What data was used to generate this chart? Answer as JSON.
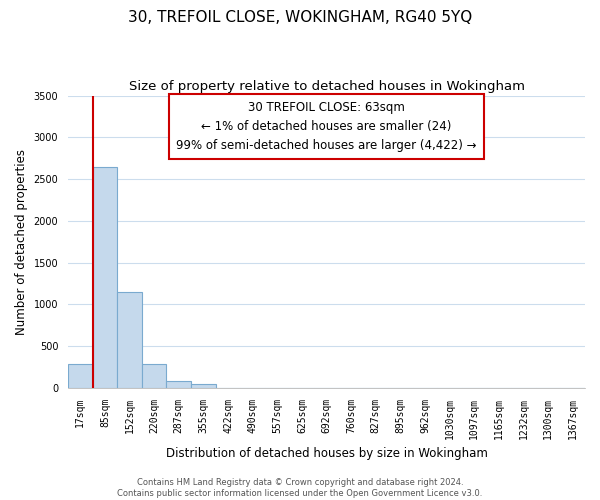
{
  "title": "30, TREFOIL CLOSE, WOKINGHAM, RG40 5YQ",
  "subtitle": "Size of property relative to detached houses in Wokingham",
  "xlabel": "Distribution of detached houses by size in Wokingham",
  "ylabel": "Number of detached properties",
  "bar_labels": [
    "17sqm",
    "85sqm",
    "152sqm",
    "220sqm",
    "287sqm",
    "355sqm",
    "422sqm",
    "490sqm",
    "557sqm",
    "625sqm",
    "692sqm",
    "760sqm",
    "827sqm",
    "895sqm",
    "962sqm",
    "1030sqm",
    "1097sqm",
    "1165sqm",
    "1232sqm",
    "1300sqm",
    "1367sqm"
  ],
  "bar_values": [
    280,
    2650,
    1150,
    280,
    85,
    40,
    0,
    0,
    0,
    0,
    0,
    0,
    0,
    0,
    0,
    0,
    0,
    0,
    0,
    0,
    0
  ],
  "bar_color": "#c5d9ec",
  "bar_edge_color": "#7aaacf",
  "ylim": [
    0,
    3500
  ],
  "yticks": [
    0,
    500,
    1000,
    1500,
    2000,
    2500,
    3000,
    3500
  ],
  "annotation_title": "30 TREFOIL CLOSE: 63sqm",
  "annotation_line1": "← 1% of detached houses are smaller (24)",
  "annotation_line2": "99% of semi-detached houses are larger (4,422) →",
  "vline_color": "#cc0000",
  "footer1": "Contains HM Land Registry data © Crown copyright and database right 2024.",
  "footer2": "Contains public sector information licensed under the Open Government Licence v3.0.",
  "title_fontsize": 11,
  "subtitle_fontsize": 9.5,
  "axis_label_fontsize": 8.5,
  "tick_fontsize": 7,
  "annotation_fontsize": 8.5,
  "footer_fontsize": 6,
  "background_color": "#ffffff",
  "grid_color": "#ccdded"
}
